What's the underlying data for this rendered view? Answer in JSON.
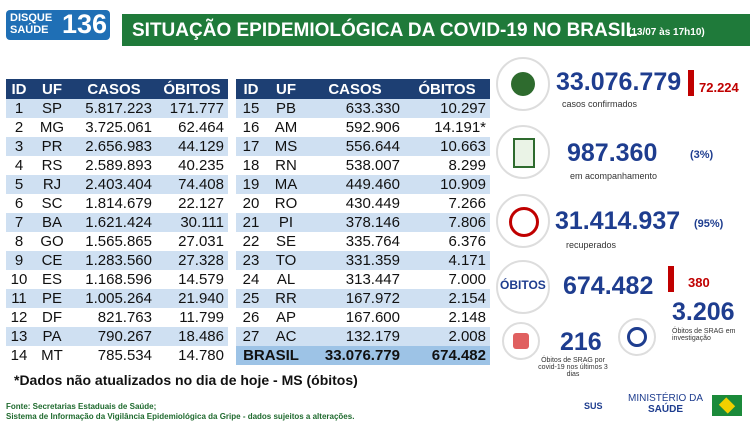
{
  "header": {
    "logo_top": "DISQUE",
    "logo_bottom": "SAÚDE",
    "logo_number": "136",
    "title": "SITUAÇÃO EPIDEMIOLÓGICA DA COVID-19 NO BRASIL",
    "timestamp": "(13/07 às 17h10)"
  },
  "table": {
    "headers": [
      "ID",
      "UF",
      "CASOS",
      "ÓBITOS"
    ],
    "rows": [
      [
        "1",
        "SP",
        "5.817.223",
        "171.777"
      ],
      [
        "2",
        "MG",
        "3.725.061",
        "62.464"
      ],
      [
        "3",
        "PR",
        "2.656.983",
        "44.129"
      ],
      [
        "4",
        "RS",
        "2.589.893",
        "40.235"
      ],
      [
        "5",
        "RJ",
        "2.403.404",
        "74.408"
      ],
      [
        "6",
        "SC",
        "1.814.679",
        "22.127"
      ],
      [
        "7",
        "BA",
        "1.621.424",
        "30.111"
      ],
      [
        "8",
        "GO",
        "1.565.865",
        "27.031"
      ],
      [
        "9",
        "CE",
        "1.283.560",
        "27.328"
      ],
      [
        "10",
        "ES",
        "1.168.596",
        "14.579"
      ],
      [
        "11",
        "PE",
        "1.005.264",
        "21.940"
      ],
      [
        "12",
        "DF",
        "821.763",
        "11.799"
      ],
      [
        "13",
        "PA",
        "790.267",
        "18.486"
      ],
      [
        "14",
        "MT",
        "785.534",
        "14.780"
      ],
      [
        "15",
        "PB",
        "633.330",
        "10.297"
      ],
      [
        "16",
        "AM",
        "592.906",
        "14.191*"
      ],
      [
        "17",
        "MS",
        "556.644",
        "10.663"
      ],
      [
        "18",
        "RN",
        "538.007",
        "8.299"
      ],
      [
        "19",
        "MA",
        "449.460",
        "10.909"
      ],
      [
        "20",
        "RO",
        "430.449",
        "7.266"
      ],
      [
        "21",
        "PI",
        "378.146",
        "7.806"
      ],
      [
        "22",
        "SE",
        "335.764",
        "6.376"
      ],
      [
        "23",
        "TO",
        "331.359",
        "4.171"
      ],
      [
        "24",
        "AL",
        "313.447",
        "7.000"
      ],
      [
        "25",
        "RR",
        "167.972",
        "2.154"
      ],
      [
        "26",
        "AP",
        "167.600",
        "2.148"
      ],
      [
        "27",
        "AC",
        "132.179",
        "2.008"
      ]
    ],
    "total": [
      "BRASIL",
      "33.076.779",
      "674.482"
    ]
  },
  "panels": {
    "confirmed": {
      "value": "33.076.779",
      "delta": "72.224",
      "label": "casos confirmados"
    },
    "monitoring": {
      "value": "987.360",
      "percent": "(3%)",
      "label": "em acompanhamento"
    },
    "recovered": {
      "value": "31.414.937",
      "percent": "(95%)",
      "label": "recuperados"
    },
    "deaths": {
      "title": "ÓBITOS",
      "value": "674.482",
      "delta": "380"
    },
    "srag": {
      "value": "216",
      "label": "Óbitos de SRAG por covid-19 nos últimos 3 dias"
    },
    "investigation": {
      "value": "3.206",
      "label": "Óbitos de SRAG em investigação"
    }
  },
  "footer": {
    "note": "*Dados não atualizados no dia de hoje - MS (óbitos)",
    "source1": "Fonte: Secretarias Estaduais de Saúde;",
    "source2": "Sistema de Informação da Vigilância Epidemiológica da Gripe - dados sujeitos a alterações.",
    "sus": "SUS",
    "ministry_top": "MINISTÉRIO DA",
    "ministry_bottom": "SAÚDE"
  }
}
